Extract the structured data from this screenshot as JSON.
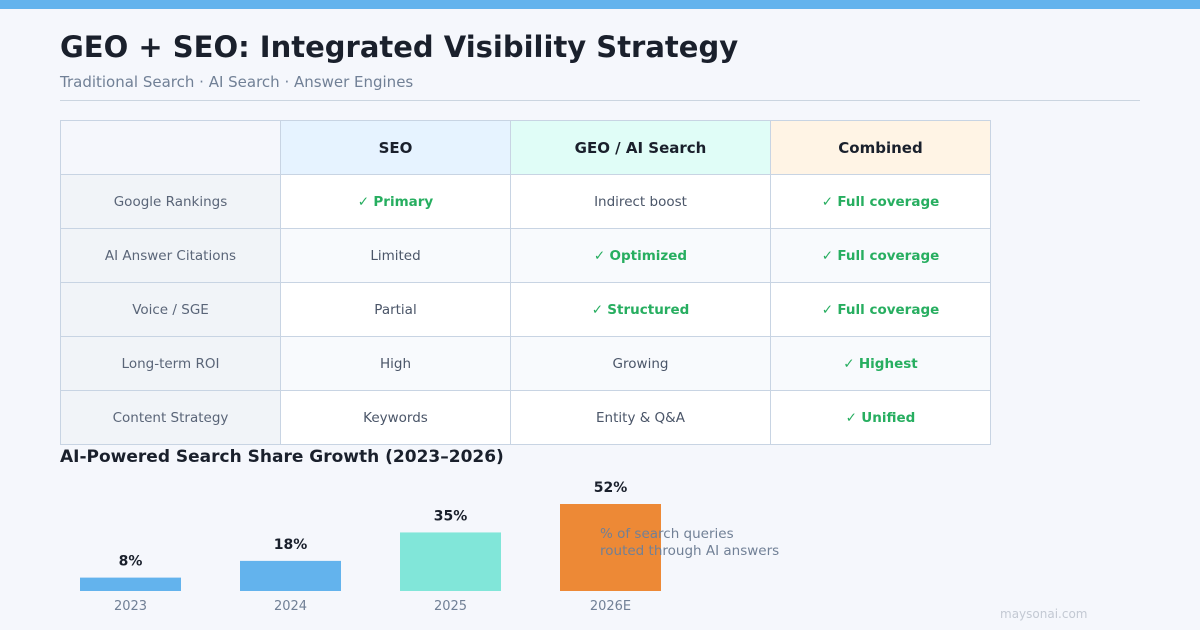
{
  "header": {
    "title": "GEO + SEO: Integrated Visibility Strategy",
    "subtitle": "Traditional Search · AI Search · Answer Engines"
  },
  "table": {
    "columns": [
      "",
      "SEO",
      "GEO / AI Search",
      "Combined"
    ],
    "rows": [
      {
        "label": "Google Rankings",
        "cells": [
          {
            "text": "Primary",
            "check": true
          },
          {
            "text": "Indirect boost",
            "check": false
          },
          {
            "text": "Full coverage",
            "check": true
          }
        ]
      },
      {
        "label": "AI Answer Citations",
        "cells": [
          {
            "text": "Limited",
            "check": false
          },
          {
            "text": "Optimized",
            "check": true
          },
          {
            "text": "Full coverage",
            "check": true
          }
        ]
      },
      {
        "label": "Voice / SGE",
        "cells": [
          {
            "text": "Partial",
            "check": false
          },
          {
            "text": "Structured",
            "check": true
          },
          {
            "text": "Full coverage",
            "check": true
          }
        ]
      },
      {
        "label": "Long-term ROI",
        "cells": [
          {
            "text": "High",
            "check": false
          },
          {
            "text": "Growing",
            "check": false
          },
          {
            "text": "Highest",
            "check": true
          }
        ]
      },
      {
        "label": "Content Strategy",
        "cells": [
          {
            "text": "Keywords",
            "check": false
          },
          {
            "text": "Entity & Q&A",
            "check": false
          },
          {
            "text": "Unified",
            "check": true
          }
        ]
      }
    ]
  },
  "chart_data": {
    "type": "bar",
    "title": "AI-Powered Search Share Growth (2023–2026)",
    "categories": [
      "2023",
      "2024",
      "2025",
      "2026E"
    ],
    "values": [
      8,
      18,
      35,
      52
    ],
    "data_labels": [
      "8%",
      "18%",
      "35%",
      "52%"
    ],
    "colors": [
      "#63b3ed",
      "#63b3ed",
      "#81e6d9",
      "#ed8936"
    ],
    "annotation": [
      "% of search queries",
      "routed through AI answers"
    ],
    "ylim": [
      0,
      52
    ],
    "grid": false
  },
  "footer": {
    "watermark": "maysonai.com"
  }
}
